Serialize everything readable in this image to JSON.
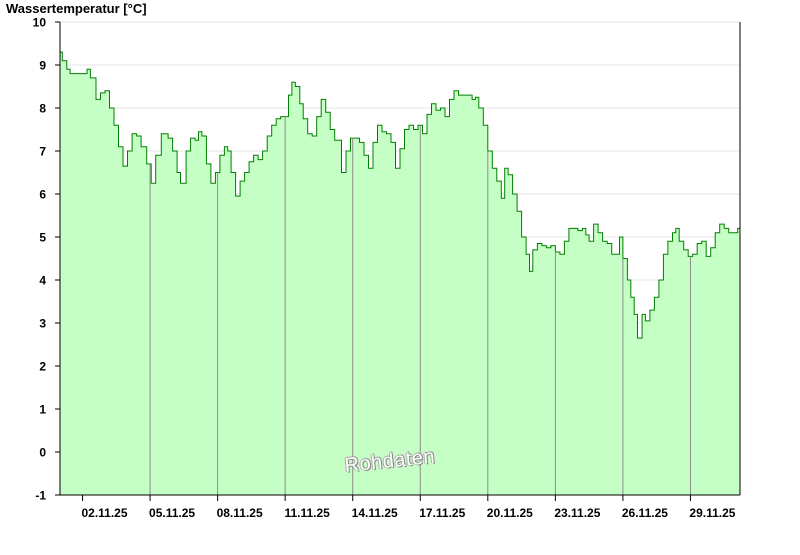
{
  "chart_data": {
    "type": "area",
    "ylabel": "Wassertemperatur [°C]",
    "xlabel": "",
    "title": "",
    "ylim": [
      -1,
      10
    ],
    "yticks": [
      -1,
      0,
      1,
      2,
      3,
      4,
      5,
      6,
      7,
      8,
      9,
      10
    ],
    "xlim": [
      1.0,
      31.2
    ],
    "xtick_positions": [
      2,
      5,
      8,
      11,
      14,
      17,
      20,
      23,
      26,
      29
    ],
    "xtick_labels": [
      "02.11.25",
      "05.11.25",
      "08.11.25",
      "11.11.25",
      "14.11.25",
      "17.11.25",
      "20.11.25",
      "23.11.25",
      "26.11.25",
      "29.11.25"
    ],
    "grid": "horizontal",
    "colors": {
      "fill": "#c6ffc6",
      "line": "#008000",
      "grid": "#e4e4e4",
      "day_line": "#8c8c8c"
    },
    "annotation": "Rohdaten",
    "series": [
      {
        "points": [
          [
            1.0,
            9.3
          ],
          [
            1.1,
            9.1
          ],
          [
            1.3,
            8.9
          ],
          [
            1.45,
            8.8
          ],
          [
            1.8,
            8.8
          ],
          [
            2.0,
            8.8
          ],
          [
            2.2,
            8.9
          ],
          [
            2.35,
            8.7
          ],
          [
            2.6,
            8.2
          ],
          [
            2.8,
            8.35
          ],
          [
            3.0,
            8.4
          ],
          [
            3.2,
            8.0
          ],
          [
            3.4,
            7.6
          ],
          [
            3.6,
            7.1
          ],
          [
            3.8,
            6.65
          ],
          [
            4.0,
            7.0
          ],
          [
            4.2,
            7.4
          ],
          [
            4.4,
            7.35
          ],
          [
            4.6,
            7.1
          ],
          [
            4.85,
            6.7
          ],
          [
            5.05,
            6.25
          ],
          [
            5.25,
            6.9
          ],
          [
            5.5,
            7.4
          ],
          [
            5.8,
            7.3
          ],
          [
            6.0,
            7.0
          ],
          [
            6.2,
            6.5
          ],
          [
            6.35,
            6.25
          ],
          [
            6.6,
            7.0
          ],
          [
            6.8,
            7.3
          ],
          [
            7.0,
            7.25
          ],
          [
            7.15,
            7.45
          ],
          [
            7.3,
            7.35
          ],
          [
            7.5,
            6.7
          ],
          [
            7.7,
            6.25
          ],
          [
            7.9,
            6.5
          ],
          [
            8.1,
            6.9
          ],
          [
            8.3,
            7.1
          ],
          [
            8.45,
            7.0
          ],
          [
            8.6,
            6.5
          ],
          [
            8.8,
            5.95
          ],
          [
            9.0,
            6.3
          ],
          [
            9.2,
            6.5
          ],
          [
            9.4,
            6.75
          ],
          [
            9.6,
            6.9
          ],
          [
            9.8,
            6.8
          ],
          [
            10.0,
            7.0
          ],
          [
            10.2,
            7.35
          ],
          [
            10.4,
            7.6
          ],
          [
            10.6,
            7.75
          ],
          [
            10.8,
            7.8
          ],
          [
            11.0,
            7.8
          ],
          [
            11.15,
            8.3
          ],
          [
            11.3,
            8.6
          ],
          [
            11.45,
            8.5
          ],
          [
            11.65,
            8.1
          ],
          [
            11.8,
            7.75
          ],
          [
            12.0,
            7.4
          ],
          [
            12.2,
            7.35
          ],
          [
            12.4,
            7.8
          ],
          [
            12.6,
            8.2
          ],
          [
            12.8,
            7.9
          ],
          [
            13.0,
            7.5
          ],
          [
            13.2,
            7.25
          ],
          [
            13.5,
            6.5
          ],
          [
            13.7,
            7.0
          ],
          [
            13.9,
            7.3
          ],
          [
            14.1,
            7.3
          ],
          [
            14.3,
            7.2
          ],
          [
            14.5,
            6.9
          ],
          [
            14.7,
            6.6
          ],
          [
            14.9,
            7.2
          ],
          [
            15.1,
            7.6
          ],
          [
            15.3,
            7.45
          ],
          [
            15.5,
            7.4
          ],
          [
            15.7,
            7.2
          ],
          [
            15.9,
            6.6
          ],
          [
            16.1,
            7.05
          ],
          [
            16.3,
            7.5
          ],
          [
            16.5,
            7.6
          ],
          [
            16.7,
            7.5
          ],
          [
            16.9,
            7.6
          ],
          [
            17.1,
            7.4
          ],
          [
            17.3,
            7.85
          ],
          [
            17.5,
            8.1
          ],
          [
            17.7,
            7.95
          ],
          [
            17.9,
            8.0
          ],
          [
            18.1,
            7.8
          ],
          [
            18.3,
            8.2
          ],
          [
            18.5,
            8.4
          ],
          [
            18.7,
            8.3
          ],
          [
            18.9,
            8.3
          ],
          [
            19.1,
            8.3
          ],
          [
            19.3,
            8.2
          ],
          [
            19.45,
            8.25
          ],
          [
            19.6,
            8.0
          ],
          [
            19.8,
            7.6
          ],
          [
            20.0,
            7.0
          ],
          [
            20.2,
            6.6
          ],
          [
            20.4,
            6.3
          ],
          [
            20.6,
            5.9
          ],
          [
            20.75,
            6.6
          ],
          [
            20.9,
            6.45
          ],
          [
            21.1,
            6.0
          ],
          [
            21.3,
            5.6
          ],
          [
            21.5,
            5.0
          ],
          [
            21.7,
            4.6
          ],
          [
            21.85,
            4.2
          ],
          [
            22.0,
            4.7
          ],
          [
            22.2,
            4.85
          ],
          [
            22.4,
            4.8
          ],
          [
            22.6,
            4.75
          ],
          [
            22.8,
            4.8
          ],
          [
            23.0,
            4.65
          ],
          [
            23.2,
            4.6
          ],
          [
            23.4,
            4.9
          ],
          [
            23.6,
            5.2
          ],
          [
            23.8,
            5.2
          ],
          [
            24.0,
            5.15
          ],
          [
            24.2,
            5.2
          ],
          [
            24.35,
            5.05
          ],
          [
            24.5,
            4.9
          ],
          [
            24.7,
            5.3
          ],
          [
            24.9,
            5.1
          ],
          [
            25.1,
            4.9
          ],
          [
            25.3,
            4.85
          ],
          [
            25.5,
            4.6
          ],
          [
            25.7,
            4.6
          ],
          [
            25.85,
            5.0
          ],
          [
            26.0,
            4.5
          ],
          [
            26.2,
            4.0
          ],
          [
            26.35,
            3.6
          ],
          [
            26.5,
            3.2
          ],
          [
            26.65,
            2.65
          ],
          [
            26.85,
            3.2
          ],
          [
            27.0,
            3.05
          ],
          [
            27.2,
            3.3
          ],
          [
            27.4,
            3.6
          ],
          [
            27.6,
            4.0
          ],
          [
            27.8,
            4.6
          ],
          [
            28.0,
            4.9
          ],
          [
            28.2,
            5.1
          ],
          [
            28.35,
            5.2
          ],
          [
            28.5,
            4.9
          ],
          [
            28.7,
            4.7
          ],
          [
            28.9,
            4.55
          ],
          [
            29.1,
            4.6
          ],
          [
            29.3,
            4.85
          ],
          [
            29.5,
            4.9
          ],
          [
            29.7,
            4.55
          ],
          [
            29.9,
            4.75
          ],
          [
            30.1,
            5.1
          ],
          [
            30.3,
            5.3
          ],
          [
            30.5,
            5.2
          ],
          [
            30.7,
            5.1
          ],
          [
            30.9,
            5.1
          ],
          [
            31.0,
            5.1
          ],
          [
            31.1,
            5.2
          ]
        ]
      }
    ]
  }
}
